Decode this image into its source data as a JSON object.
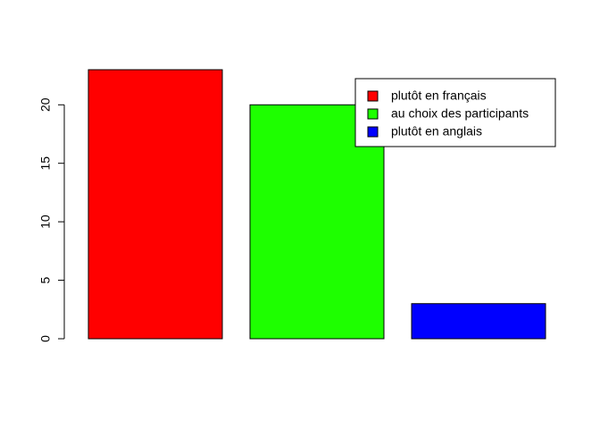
{
  "chart_data": {
    "type": "bar",
    "title": "",
    "xlabel": "",
    "ylabel": "",
    "categories": [
      "plutôt en français",
      "au choix des participants",
      "plutôt en anglais"
    ],
    "values": [
      23,
      20,
      3
    ],
    "colors": [
      "#ff0000",
      "#1eff00",
      "#0000ff"
    ],
    "ylim": [
      0,
      23
    ],
    "yticks": [
      0,
      5,
      10,
      15,
      20
    ],
    "legend": {
      "position": "top-right",
      "entries": [
        "plutôt en français",
        "au choix des participants",
        "plutôt en anglais"
      ]
    }
  }
}
